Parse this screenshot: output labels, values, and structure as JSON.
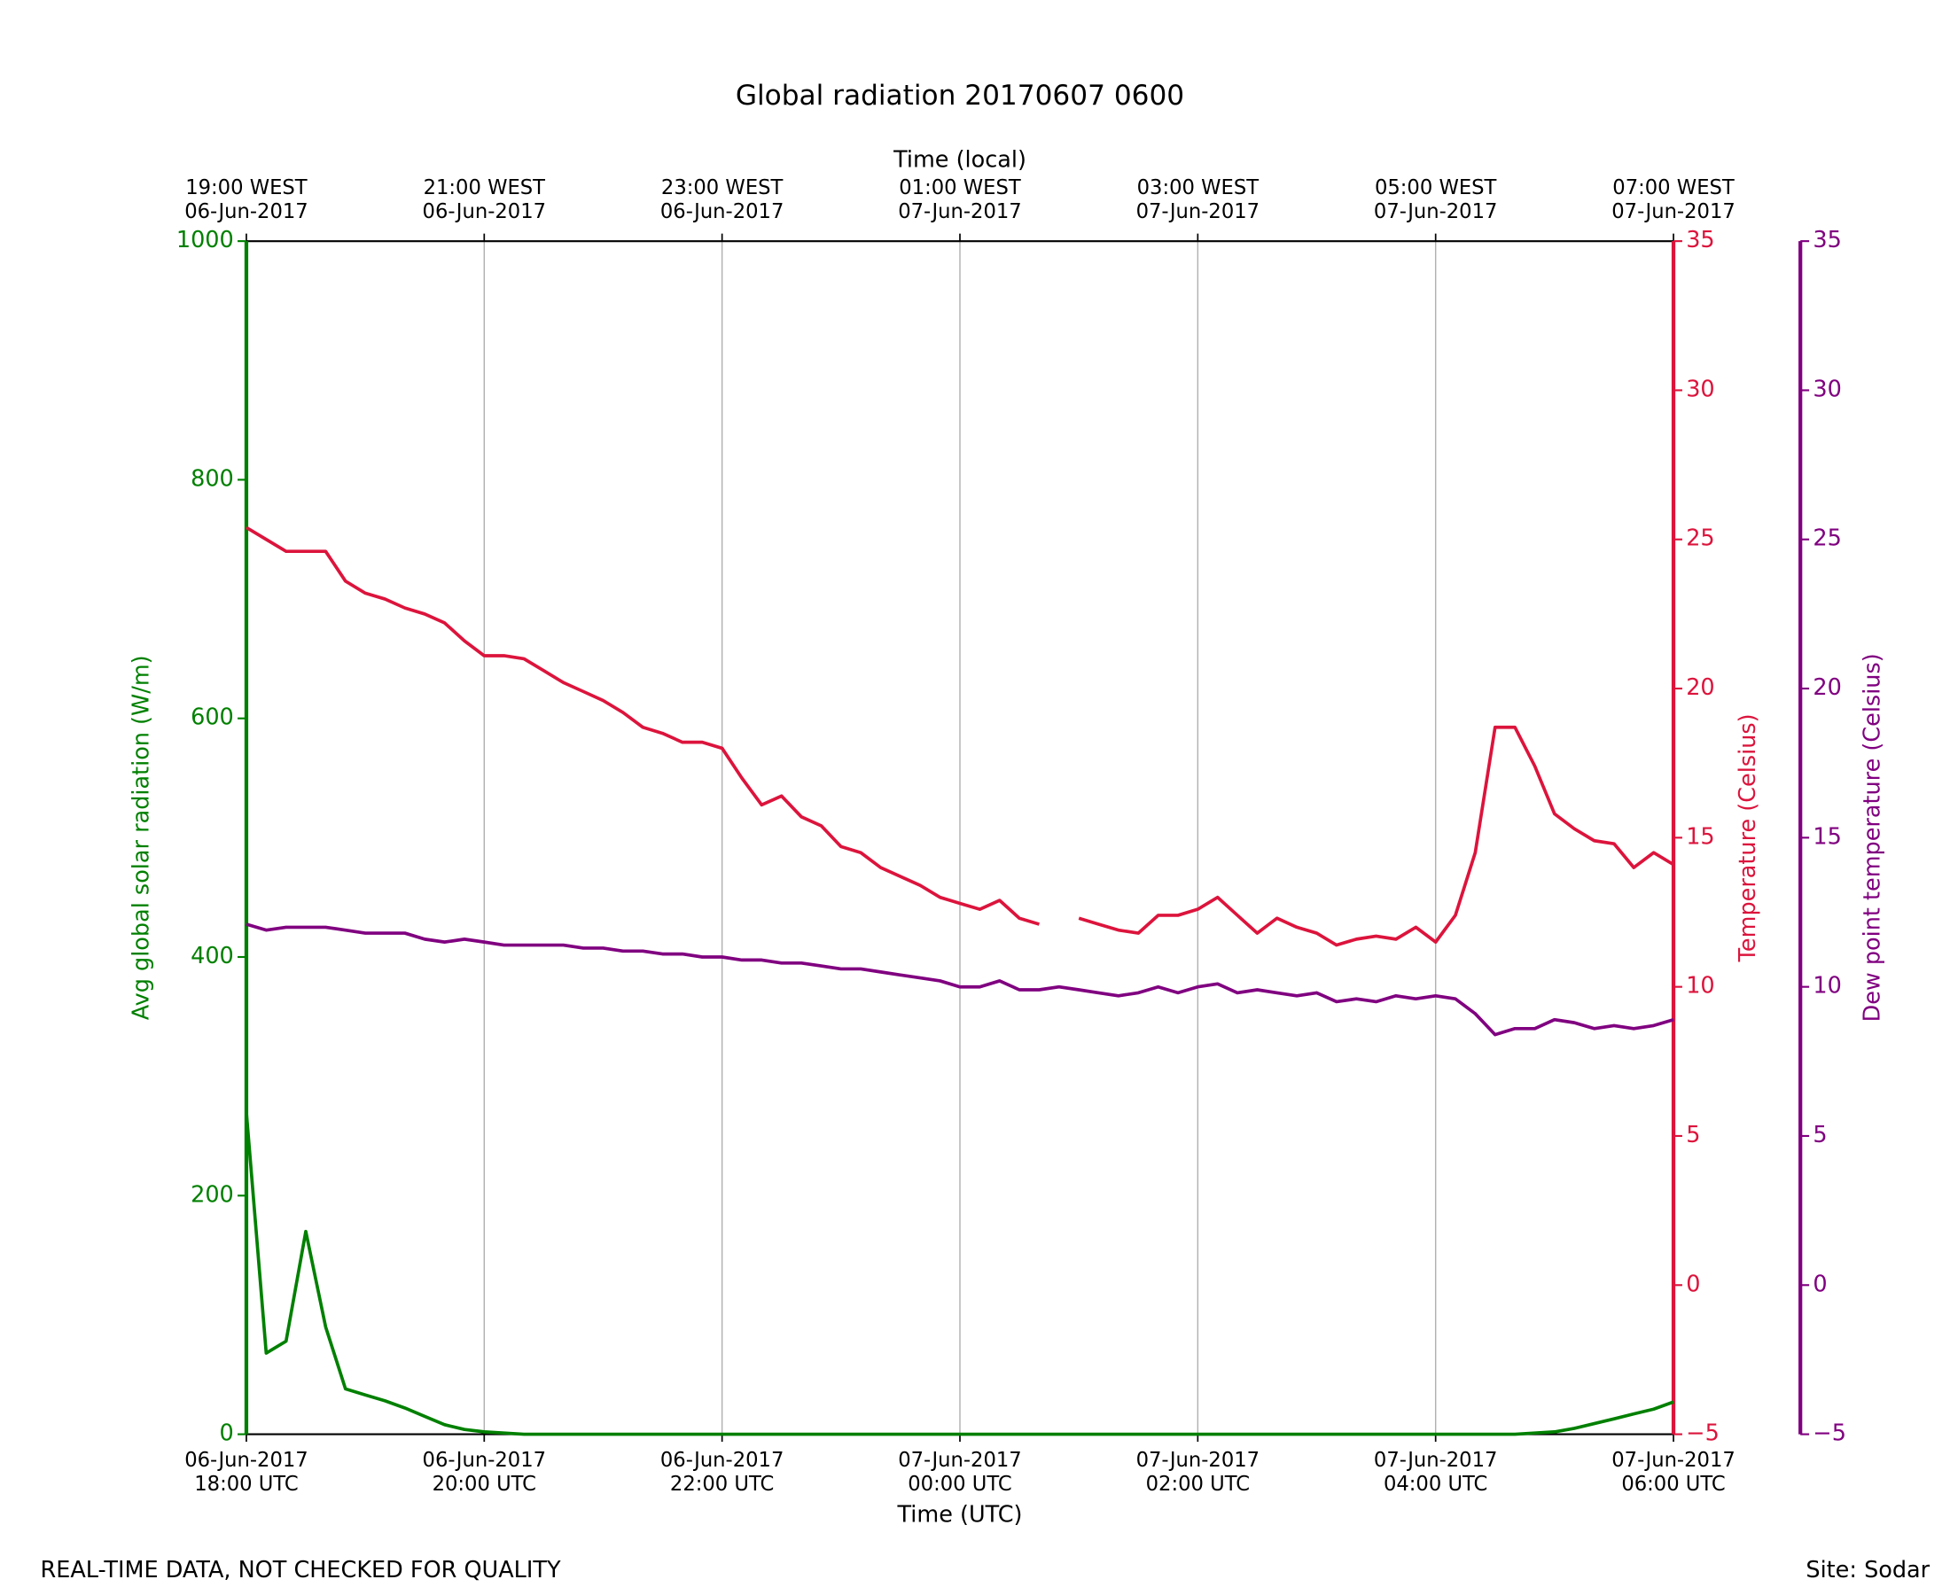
{
  "chart_data": {
    "type": "line",
    "title": "Global radiation 20170607 0600",
    "xlabel": "Time (UTC)",
    "x2label": "Time (local)",
    "footer_left": "REAL-TIME DATA, NOT CHECKED FOR QUALITY",
    "footer_right": "Site: Sodar",
    "grid": true,
    "xlim": [
      "2017-06-06T18:00",
      "2017-06-07T06:00"
    ],
    "xticks": [
      {
        "value": "2017-06-06T18:00",
        "label": [
          "06-Jun-2017",
          "18:00 UTC"
        ]
      },
      {
        "value": "2017-06-06T20:00",
        "label": [
          "06-Jun-2017",
          "20:00 UTC"
        ]
      },
      {
        "value": "2017-06-06T22:00",
        "label": [
          "06-Jun-2017",
          "22:00 UTC"
        ]
      },
      {
        "value": "2017-06-07T00:00",
        "label": [
          "07-Jun-2017",
          "00:00 UTC"
        ]
      },
      {
        "value": "2017-06-07T02:00",
        "label": [
          "07-Jun-2017",
          "02:00 UTC"
        ]
      },
      {
        "value": "2017-06-07T04:00",
        "label": [
          "07-Jun-2017",
          "04:00 UTC"
        ]
      },
      {
        "value": "2017-06-07T06:00",
        "label": [
          "07-Jun-2017",
          "06:00 UTC"
        ]
      }
    ],
    "x2ticks": [
      {
        "value": "2017-06-06T18:00",
        "label": [
          "19:00 WEST",
          "06-Jun-2017"
        ]
      },
      {
        "value": "2017-06-06T20:00",
        "label": [
          "21:00 WEST",
          "06-Jun-2017"
        ]
      },
      {
        "value": "2017-06-06T22:00",
        "label": [
          "23:00 WEST",
          "06-Jun-2017"
        ]
      },
      {
        "value": "2017-06-07T00:00",
        "label": [
          "01:00 WEST",
          "07-Jun-2017"
        ]
      },
      {
        "value": "2017-06-07T02:00",
        "label": [
          "03:00 WEST",
          "07-Jun-2017"
        ]
      },
      {
        "value": "2017-06-07T04:00",
        "label": [
          "05:00 WEST",
          "07-Jun-2017"
        ]
      },
      {
        "value": "2017-06-07T06:00",
        "label": [
          "07:00 WEST",
          "07-Jun-2017"
        ]
      }
    ],
    "ylim": [
      0,
      1000
    ],
    "yticks": [
      0,
      200,
      400,
      600,
      800,
      1000
    ],
    "y2lim": [
      -5,
      35
    ],
    "y2ticks": [
      {
        "value": -5,
        "label": "−5"
      },
      0,
      5,
      10,
      15,
      20,
      25,
      30,
      35
    ],
    "y3lim": [
      -5,
      35
    ],
    "y3ticks": [
      {
        "value": -5,
        "label": "−5"
      },
      0,
      5,
      10,
      15,
      20,
      25,
      30,
      35
    ],
    "x": [
      "2017-06-06T18:00",
      "2017-06-06T18:10",
      "2017-06-06T18:20",
      "2017-06-06T18:30",
      "2017-06-06T18:40",
      "2017-06-06T18:50",
      "2017-06-06T19:00",
      "2017-06-06T19:10",
      "2017-06-06T19:20",
      "2017-06-06T19:30",
      "2017-06-06T19:40",
      "2017-06-06T19:50",
      "2017-06-06T20:00",
      "2017-06-06T20:10",
      "2017-06-06T20:20",
      "2017-06-06T20:30",
      "2017-06-06T20:40",
      "2017-06-06T20:50",
      "2017-06-06T21:00",
      "2017-06-06T21:10",
      "2017-06-06T21:20",
      "2017-06-06T21:30",
      "2017-06-06T21:40",
      "2017-06-06T21:50",
      "2017-06-06T22:00",
      "2017-06-06T22:10",
      "2017-06-06T22:20",
      "2017-06-06T22:30",
      "2017-06-06T22:40",
      "2017-06-06T22:50",
      "2017-06-06T23:00",
      "2017-06-06T23:10",
      "2017-06-06T23:20",
      "2017-06-06T23:30",
      "2017-06-06T23:40",
      "2017-06-06T23:50",
      "2017-06-07T00:00",
      "2017-06-07T00:10",
      "2017-06-07T00:20",
      "2017-06-07T00:30",
      "2017-06-07T00:40",
      "2017-06-07T00:50",
      "2017-06-07T01:00",
      "2017-06-07T01:10",
      "2017-06-07T01:20",
      "2017-06-07T01:30",
      "2017-06-07T01:40",
      "2017-06-07T01:50",
      "2017-06-07T02:00",
      "2017-06-07T02:10",
      "2017-06-07T02:20",
      "2017-06-07T02:30",
      "2017-06-07T02:40",
      "2017-06-07T02:50",
      "2017-06-07T03:00",
      "2017-06-07T03:10",
      "2017-06-07T03:20",
      "2017-06-07T03:30",
      "2017-06-07T03:40",
      "2017-06-07T03:50",
      "2017-06-07T04:00",
      "2017-06-07T04:10",
      "2017-06-07T04:20",
      "2017-06-07T04:30",
      "2017-06-07T04:40",
      "2017-06-07T04:50",
      "2017-06-07T05:00",
      "2017-06-07T05:10",
      "2017-06-07T05:20",
      "2017-06-07T05:30",
      "2017-06-07T05:40",
      "2017-06-07T05:50",
      "2017-06-07T06:00"
    ],
    "series": [
      {
        "name": "Avg global solar radiation (W/m)",
        "color": "#008000",
        "axis": "y",
        "values": [
          270,
          68,
          78,
          170,
          90,
          38,
          33,
          28,
          22,
          15,
          8,
          4,
          2,
          1,
          0,
          0,
          0,
          0,
          0,
          0,
          0,
          0,
          0,
          0,
          0,
          0,
          0,
          0,
          0,
          0,
          0,
          0,
          0,
          0,
          0,
          0,
          0,
          0,
          0,
          0,
          0,
          0,
          0,
          0,
          0,
          0,
          0,
          0,
          0,
          0,
          0,
          0,
          0,
          0,
          0,
          0,
          0,
          0,
          0,
          0,
          0,
          0,
          0,
          0,
          0,
          1,
          2,
          5,
          9,
          13,
          17,
          21,
          27
        ]
      },
      {
        "name": "Temperature (Celsius)",
        "color": "#dc143c",
        "axis": "y2",
        "values": [
          25.4,
          25.0,
          24.6,
          24.6,
          24.6,
          23.6,
          23.2,
          23.0,
          22.7,
          22.5,
          22.2,
          21.6,
          21.1,
          21.1,
          21.0,
          20.6,
          20.2,
          19.9,
          19.6,
          19.2,
          18.7,
          18.5,
          18.2,
          18.2,
          18.0,
          17.0,
          16.1,
          16.4,
          15.7,
          15.4,
          14.7,
          14.5,
          14.0,
          13.7,
          13.4,
          13.0,
          12.8,
          12.6,
          12.9,
          12.3,
          12.1,
          null,
          12.3,
          12.1,
          11.9,
          11.8,
          12.4,
          12.4,
          12.6,
          13.0,
          12.4,
          11.8,
          12.3,
          12.0,
          11.8,
          11.4,
          11.6,
          11.7,
          11.6,
          12.0,
          11.5,
          12.4,
          14.5,
          18.7,
          18.7,
          17.4,
          15.8,
          15.3,
          14.9,
          14.8,
          14.0,
          14.5,
          14.1
        ]
      },
      {
        "name": "Dew point temperature (Celsius)",
        "color": "#800080",
        "axis": "y3",
        "values": [
          12.1,
          11.9,
          12.0,
          12.0,
          12.0,
          11.9,
          11.8,
          11.8,
          11.8,
          11.6,
          11.5,
          11.6,
          11.5,
          11.4,
          11.4,
          11.4,
          11.4,
          11.3,
          11.3,
          11.2,
          11.2,
          11.1,
          11.1,
          11.0,
          11.0,
          10.9,
          10.9,
          10.8,
          10.8,
          10.7,
          10.6,
          10.6,
          10.5,
          10.4,
          10.3,
          10.2,
          10.0,
          10.0,
          10.2,
          9.9,
          9.9,
          10.0,
          9.9,
          9.8,
          9.7,
          9.8,
          10.0,
          9.8,
          10.0,
          10.1,
          9.8,
          9.9,
          9.8,
          9.7,
          9.8,
          9.5,
          9.6,
          9.5,
          9.7,
          9.6,
          9.7,
          9.6,
          9.1,
          8.4,
          8.6,
          8.6,
          8.9,
          8.8,
          8.6,
          8.7,
          8.6,
          8.7,
          8.9
        ]
      }
    ]
  }
}
